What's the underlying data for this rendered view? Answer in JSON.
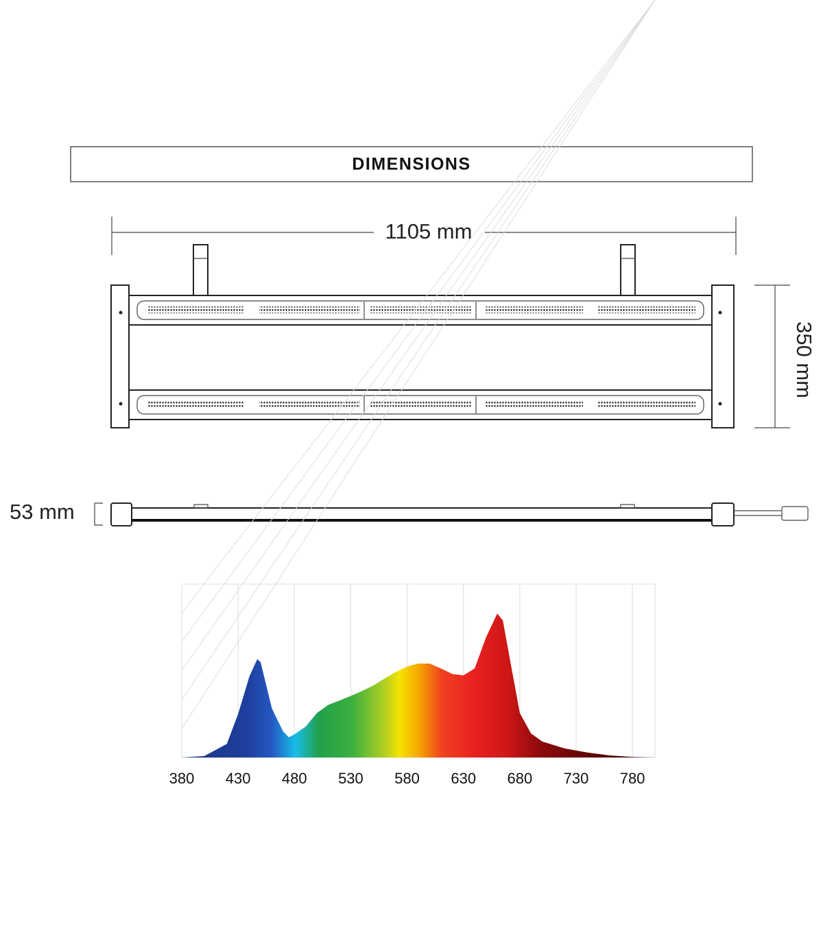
{
  "header": {
    "title": "DIMENSIONS"
  },
  "dimensions": {
    "length": "1105 mm",
    "width": "350 mm",
    "height": "53 mm"
  },
  "chart_data": {
    "type": "area",
    "x": [
      380,
      400,
      420,
      430,
      440,
      447,
      450,
      455,
      460,
      465,
      470,
      475,
      480,
      490,
      500,
      510,
      520,
      530,
      540,
      550,
      560,
      570,
      580,
      590,
      600,
      610,
      620,
      630,
      640,
      650,
      660,
      665,
      670,
      680,
      690,
      700,
      720,
      740,
      760,
      780,
      800
    ],
    "values": [
      0,
      0.05,
      0.47,
      1.5,
      2.8,
      3.4,
      3.3,
      2.5,
      1.7,
      1.3,
      0.9,
      0.7,
      0.8,
      1.07,
      1.54,
      1.82,
      1.97,
      2.13,
      2.3,
      2.49,
      2.73,
      2.96,
      3.15,
      3.25,
      3.25,
      3.08,
      2.89,
      2.84,
      3.08,
      4.15,
      4.98,
      4.74,
      3.67,
      1.54,
      0.83,
      0.55,
      0.31,
      0.17,
      0.07,
      0.02,
      0
    ],
    "xlim": [
      380,
      800
    ],
    "ylim": [
      0,
      6
    ],
    "xticks": [
      380,
      430,
      480,
      530,
      580,
      630,
      680,
      730,
      780
    ],
    "grid": true
  }
}
